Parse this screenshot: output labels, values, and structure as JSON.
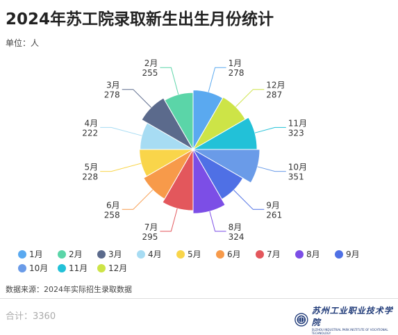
{
  "title": "2024年苏工院录取新生出生月份统计",
  "unit": "单位：人",
  "source": "数据来源：2024年实际招生录取数据",
  "total": "合计：3360",
  "logo": {
    "name": "苏州工业职业技术学院",
    "english": "SUZHOU INDUSTRIAL PARK INSTITUTE OF VOCATIONAL TECHNOLOGY"
  },
  "chart_data": {
    "type": "pie",
    "subtype": "nightingale-rose",
    "categories": [
      "1月",
      "2月",
      "3月",
      "4月",
      "5月",
      "6月",
      "7月",
      "8月",
      "9月",
      "10月",
      "11月",
      "12月"
    ],
    "values": [
      278,
      255,
      278,
      222,
      228,
      258,
      295,
      324,
      261,
      351,
      323,
      287
    ],
    "slice_order": [
      "1月",
      "12月",
      "11月",
      "10月",
      "9月",
      "8月",
      "7月",
      "6月",
      "5月",
      "4月",
      "3月",
      "2月"
    ],
    "colors": {
      "1月": "#5aa9f0",
      "2月": "#5bd5a8",
      "3月": "#5b6a8c",
      "4月": "#a7dcf3",
      "5月": "#f9d54a",
      "6月": "#f79a4a",
      "7月": "#e3575c",
      "8月": "#7c4ee6",
      "9月": "#4f70e5",
      "10月": "#6a9be8",
      "11月": "#22c1d8",
      "12月": "#cde447"
    },
    "legend_position": "bottom"
  }
}
